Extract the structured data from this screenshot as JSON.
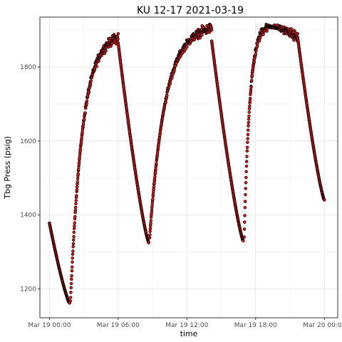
{
  "chart_data": {
    "type": "scatter",
    "title": "KU 12-17 2021-03-19",
    "xlabel": "time",
    "ylabel": "Tbg Press (psig)",
    "x_ticks": [
      {
        "label": "Mar 19 00:00",
        "hours": 0
      },
      {
        "label": "Mar 19 06:00",
        "hours": 6
      },
      {
        "label": "Mar 19 12:00",
        "hours": 12
      },
      {
        "label": "Mar 19 18:00",
        "hours": 18
      },
      {
        "label": "Mar 20 00:00",
        "hours": 24
      }
    ],
    "y_ticks": [
      1200,
      1400,
      1600,
      1800
    ],
    "xlim": [
      "Mar 18 23:10",
      "Mar 20 01:10"
    ],
    "ylim": [
      1122,
      1935
    ],
    "grid": true,
    "point_fill": "#e31a1c",
    "point_stroke": "#000000",
    "segments": [
      {
        "kind": "decline",
        "start": [
          "Mar 19 00:00",
          1378
        ],
        "end": [
          "Mar 19 01:45",
          1162
        ]
      },
      {
        "kind": "buildup",
        "start": [
          "Mar 19 01:50",
          1165
        ],
        "end": [
          "Mar 19 06:00",
          1880
        ]
      },
      {
        "kind": "decline",
        "start": [
          "Mar 19 06:00",
          1865
        ],
        "end": [
          "Mar 19 08:40",
          1325
        ]
      },
      {
        "kind": "buildup",
        "start": [
          "Mar 19 08:45",
          1340
        ],
        "end": [
          "Mar 19 14:10",
          1905
        ]
      },
      {
        "kind": "decline",
        "start": [
          "Mar 19 14:10",
          1870
        ],
        "end": [
          "Mar 19 16:55",
          1330
        ]
      },
      {
        "kind": "buildup",
        "start": [
          "Mar 19 17:00",
          1340
        ],
        "end": [
          "Mar 19 19:00",
          1910
        ]
      },
      {
        "kind": "plateau",
        "start": [
          "Mar 19 19:00",
          1910
        ],
        "end": [
          "Mar 19 21:40",
          1880
        ]
      },
      {
        "kind": "decline",
        "start": [
          "Mar 19 21:40",
          1880
        ],
        "end": [
          "Mar 20 00:00",
          1440
        ]
      }
    ]
  }
}
